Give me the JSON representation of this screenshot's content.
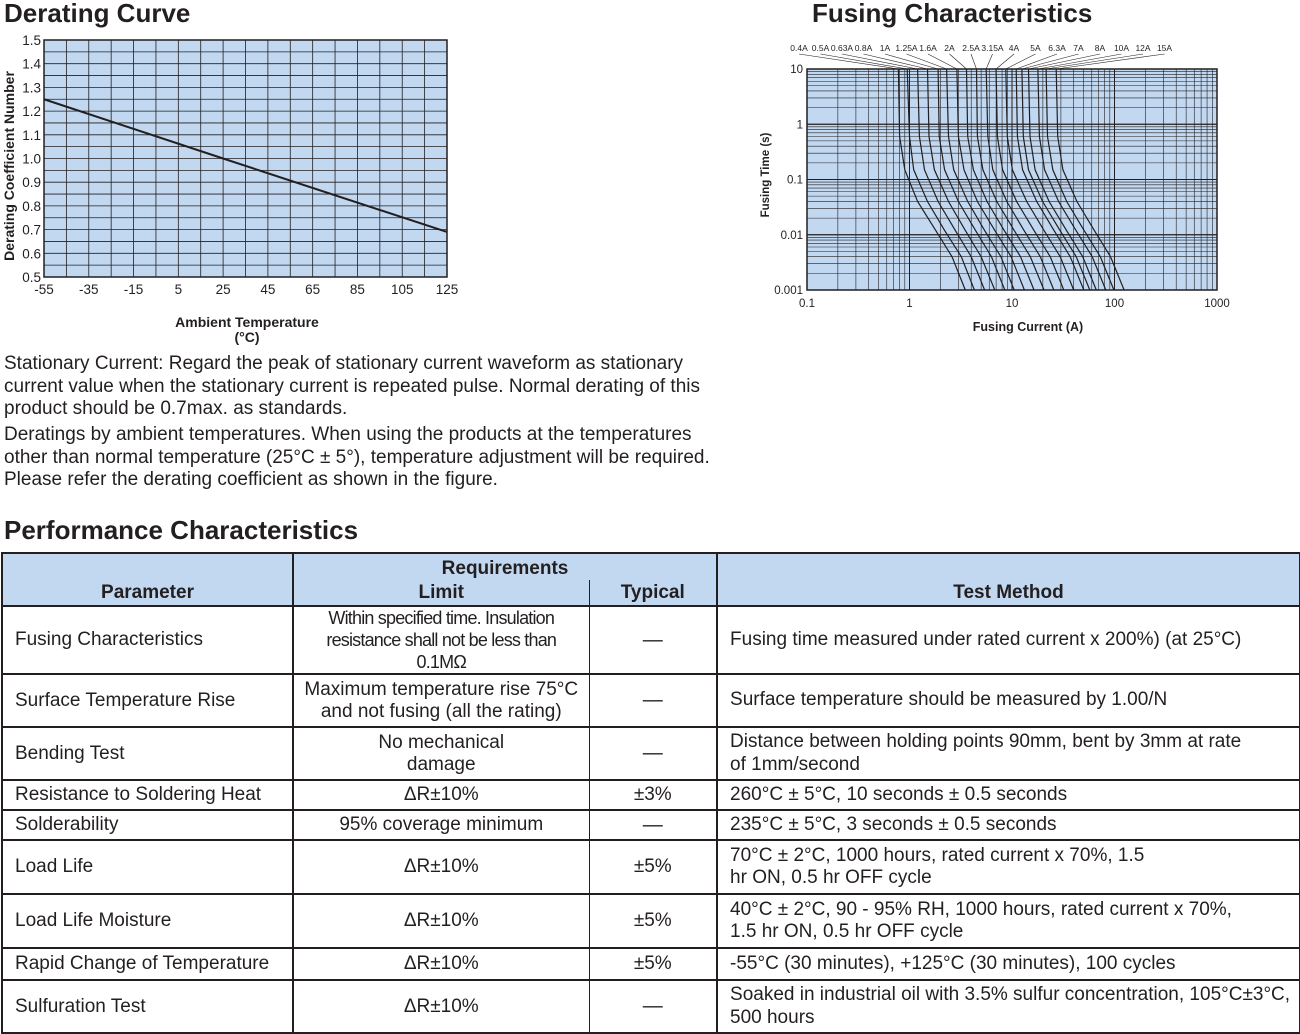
{
  "derating": {
    "title": "Derating Curve",
    "ylabel": "Derating Coefficient Number",
    "xlabel_line1": "Ambient Temperature",
    "xlabel_line2": "(°C)"
  },
  "fusing": {
    "title": "Fusing Characteristics",
    "ylabel": "Fusing Time (s)",
    "xlabel": "Fusing Current (A)"
  },
  "notes": {
    "p1": "Stationary Current: Regard the peak of stationary current waveform as stationary current value when the stationary current is repeated pulse. Normal derating of this product should be 0.7max. as standards.",
    "p2": "Deratings by ambient temperatures. When using the products at the temperatures other than normal temperature (25°C ± 5°), temperature adjustment will be required. Please refer the derating coefficient as shown in the figure."
  },
  "performance": {
    "title": "Performance Characteristics",
    "headers": {
      "parameter": "Parameter",
      "requirements": "Requirements",
      "limit": "Limit",
      "typical": "Typical",
      "test_method": "Test Method"
    },
    "rows": [
      {
        "parameter": "Fusing Characteristics",
        "limit": "Within specified time. Insulation resistance shall not be less than 0.1MΩ",
        "typical": "—",
        "test": "Fusing time measured under rated current x 200%) (at 25°C)"
      },
      {
        "parameter": "Surface Temperature Rise",
        "limit": "Maximum temperature rise 75°C and not fusing (all the rating)",
        "typical": "—",
        "test": "Surface temperature should be measured by 1.00/N"
      },
      {
        "parameter": "Bending Test",
        "limit": "No mechanical damage",
        "typical": "—",
        "test": "Distance between holding points 90mm, bent by 3mm at rate of 1mm/second"
      },
      {
        "parameter": "Resistance to Soldering Heat",
        "limit": "ΔR±10%",
        "typical": "±3%",
        "test": "260°C ± 5°C, 10 seconds ± 0.5 seconds"
      },
      {
        "parameter": "Solderability",
        "limit": "95% coverage minimum",
        "typical": "—",
        "test": "235°C ± 5°C, 3 seconds ± 0.5 seconds"
      },
      {
        "parameter": "Load Life",
        "limit": "ΔR±10%",
        "typical": "±5%",
        "test": "70°C ± 2°C, 1000 hours, rated current x 70%, 1.5 hr ON, 0.5 hr OFF cycle"
      },
      {
        "parameter": "Load Life Moisture",
        "limit": "ΔR±10%",
        "typical": "±5%",
        "test": "40°C ± 2°C, 90 - 95% RH, 1000 hours, rated current x 70%, 1.5 hr ON, 0.5 hr OFF cycle"
      },
      {
        "parameter": "Rapid Change of Temperature",
        "limit": "ΔR±10%",
        "typical": "±5%",
        "test": "-55°C (30 minutes), +125°C (30 minutes), 100 cycles"
      },
      {
        "parameter": "Sulfuration Test",
        "limit": "ΔR±10%",
        "typical": "—",
        "test": "Soaked in industrial oil with 3.5% sulfur concentration, 105°C±3°C, 500 hours"
      }
    ]
  },
  "colors": {
    "chart_fill": "#c1d8f0",
    "line": "#231f20",
    "header_fill": "#c1d8f0"
  },
  "chart_data": [
    {
      "type": "line",
      "title": "Derating Curve",
      "xlabel": "Ambient Temperature (°C)",
      "ylabel": "Derating Coefficient Number",
      "xlim": [
        -55,
        125
      ],
      "ylim": [
        0.5,
        1.5
      ],
      "x_ticks": [
        -55,
        -35,
        -15,
        5,
        25,
        45,
        65,
        85,
        105,
        125
      ],
      "y_ticks": [
        0.5,
        0.6,
        0.7,
        0.8,
        0.9,
        1.0,
        1.1,
        1.2,
        1.3,
        1.4,
        1.5
      ],
      "x_tick_labels": [
        "-55",
        "-35",
        "-15",
        "5",
        "25",
        "45",
        "65",
        "85",
        "105",
        "125"
      ],
      "y_tick_labels": [
        "0.5",
        "0.6",
        "0.7",
        "0.8",
        "0.9",
        "1.0",
        "1.1",
        "1.2",
        "1.3",
        "1.4",
        "1.5"
      ],
      "grid": true,
      "series": [
        {
          "x": [
            -55,
            25,
            125
          ],
          "y": [
            1.25,
            1.0,
            0.69
          ]
        }
      ]
    },
    {
      "type": "line",
      "title": "Fusing Characteristics",
      "xlabel": "Fusing Current (A)",
      "ylabel": "Fusing Time (s)",
      "x_scale": "log",
      "y_scale": "log",
      "xlim": [
        0.1,
        1000
      ],
      "ylim": [
        0.001,
        10
      ],
      "x_tick_labels": [
        "0.1",
        "1",
        "10",
        "100",
        "1000"
      ],
      "y_tick_labels": [
        "0.001",
        "0.01",
        "0.1",
        "1",
        "10"
      ],
      "x_ticks": [
        0.1,
        1,
        10,
        100,
        1000
      ],
      "y_ticks": [
        0.001,
        0.01,
        0.1,
        1,
        10
      ],
      "grid": true,
      "series": [
        {
          "name": "0.4A",
          "x": [
            0.78,
            0.8,
            0.9,
            1.2,
            1.8,
            2.6,
            3.5
          ],
          "y": [
            10,
            0.6,
            0.15,
            0.04,
            0.012,
            0.004,
            0.001
          ]
        },
        {
          "name": "0.5A",
          "x": [
            0.95,
            1.0,
            1.1,
            1.5,
            2.2,
            3.2,
            4.3
          ],
          "y": [
            10,
            0.6,
            0.15,
            0.04,
            0.012,
            0.004,
            0.001
          ]
        },
        {
          "name": "0.63A",
          "x": [
            1.2,
            1.25,
            1.4,
            1.9,
            2.8,
            4.0,
            5.4
          ],
          "y": [
            10,
            0.6,
            0.15,
            0.04,
            0.012,
            0.004,
            0.001
          ]
        },
        {
          "name": "0.8A",
          "x": [
            1.5,
            1.55,
            1.75,
            2.4,
            3.5,
            5.0,
            6.8
          ],
          "y": [
            10,
            0.6,
            0.15,
            0.04,
            0.012,
            0.004,
            0.001
          ]
        },
        {
          "name": "1A",
          "x": [
            1.9,
            1.95,
            2.2,
            3.0,
            4.4,
            6.3,
            8.5
          ],
          "y": [
            10,
            0.6,
            0.15,
            0.04,
            0.012,
            0.004,
            0.001
          ]
        },
        {
          "name": "1.25A",
          "x": [
            2.3,
            2.4,
            2.7,
            3.7,
            5.4,
            7.8,
            10.5
          ],
          "y": [
            10,
            0.6,
            0.15,
            0.04,
            0.012,
            0.004,
            0.001
          ]
        },
        {
          "name": "1.6A",
          "x": [
            2.9,
            3.0,
            3.4,
            4.6,
            6.8,
            9.8,
            13.2
          ],
          "y": [
            10,
            0.6,
            0.15,
            0.04,
            0.012,
            0.004,
            0.001
          ]
        },
        {
          "name": "2A",
          "x": [
            3.6,
            3.7,
            4.2,
            5.7,
            8.4,
            12.1,
            16.4
          ],
          "y": [
            10,
            0.6,
            0.15,
            0.04,
            0.012,
            0.004,
            0.001
          ]
        },
        {
          "name": "2.5A",
          "x": [
            4.5,
            4.6,
            5.2,
            7.1,
            10.5,
            15.1,
            20.5
          ],
          "y": [
            10,
            0.6,
            0.15,
            0.04,
            0.012,
            0.004,
            0.001
          ]
        },
        {
          "name": "3.15A",
          "x": [
            5.6,
            5.8,
            6.5,
            8.9,
            13.1,
            18.9,
            25.6
          ],
          "y": [
            10,
            0.6,
            0.15,
            0.04,
            0.012,
            0.004,
            0.001
          ]
        },
        {
          "name": "4A",
          "x": [
            7.0,
            7.2,
            8.1,
            11.1,
            16.4,
            23.6,
            32.0
          ],
          "y": [
            10,
            0.6,
            0.15,
            0.04,
            0.012,
            0.004,
            0.001
          ]
        },
        {
          "name": "5A",
          "x": [
            8.7,
            9.0,
            10.1,
            13.9,
            20.5,
            29.5,
            40.0
          ],
          "y": [
            10,
            0.6,
            0.15,
            0.04,
            0.012,
            0.004,
            0.001
          ]
        },
        {
          "name": "6.3A",
          "x": [
            11.0,
            11.3,
            12.7,
            17.4,
            25.7,
            37.0,
            50.2
          ],
          "y": [
            10,
            0.6,
            0.15,
            0.04,
            0.012,
            0.004,
            0.001
          ]
        },
        {
          "name": "7A",
          "x": [
            12.5,
            12.9,
            14.5,
            19.9,
            29.4,
            42.3,
            57.4
          ],
          "y": [
            10,
            0.6,
            0.15,
            0.04,
            0.012,
            0.004,
            0.001
          ]
        },
        {
          "name": "8A",
          "x": [
            14.5,
            15.0,
            16.8,
            23.0,
            34.0,
            49.0,
            66.5
          ],
          "y": [
            10,
            0.6,
            0.15,
            0.04,
            0.012,
            0.004,
            0.001
          ]
        },
        {
          "name": "10A",
          "x": [
            17.9,
            18.5,
            20.8,
            28.5,
            42.1,
            60.6,
            82.3
          ],
          "y": [
            10,
            0.6,
            0.15,
            0.04,
            0.012,
            0.004,
            0.001
          ]
        },
        {
          "name": "12A",
          "x": [
            21.5,
            22.2,
            25.0,
            34.2,
            50.5,
            72.7,
            98.7
          ],
          "y": [
            10,
            0.6,
            0.15,
            0.04,
            0.012,
            0.004,
            0.001
          ]
        },
        {
          "name": "15A",
          "x": [
            27.0,
            27.9,
            31.4,
            43.0,
            63.5,
            91.4,
            124.0
          ],
          "y": [
            10,
            0.6,
            0.15,
            0.04,
            0.012,
            0.004,
            0.001
          ]
        }
      ]
    }
  ]
}
